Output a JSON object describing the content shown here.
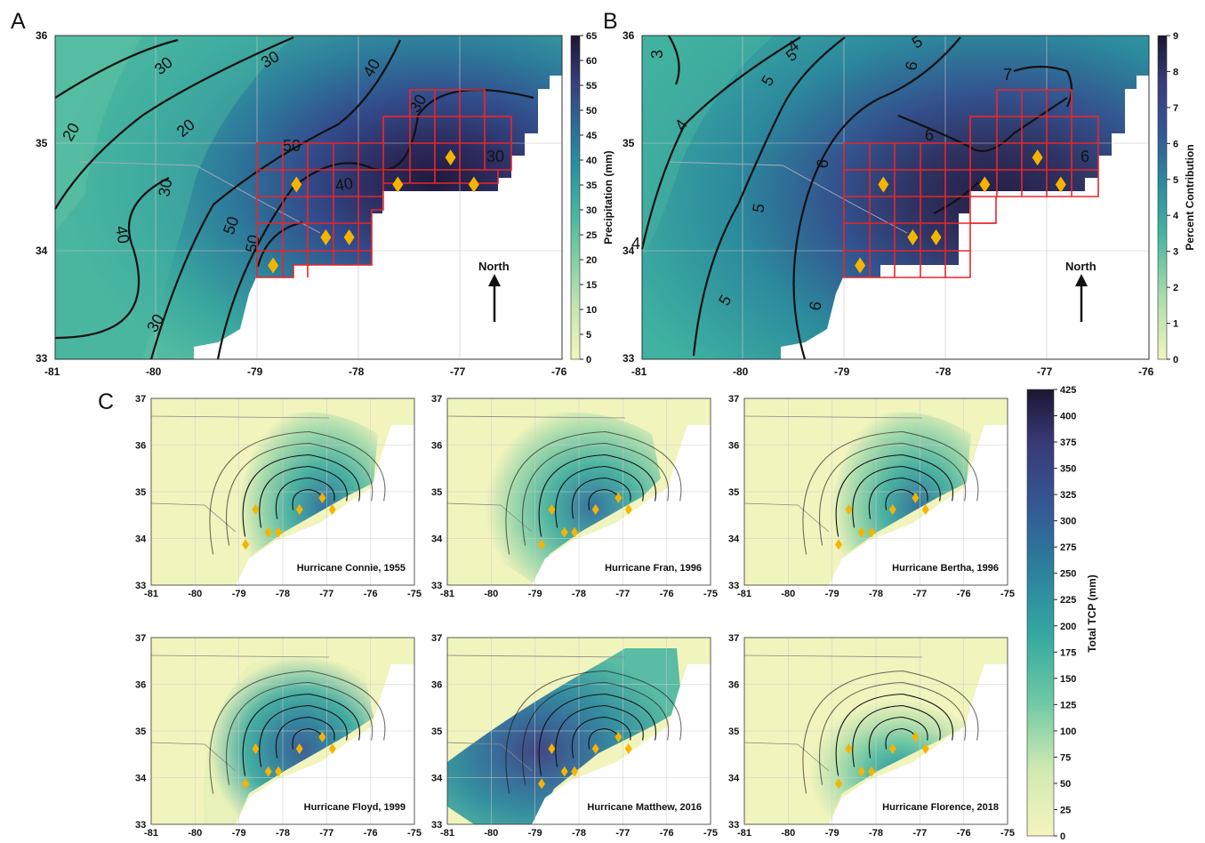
{
  "panels": {
    "A": {
      "label": "A",
      "colorbar_title": "Precipitation (mm)",
      "colorbar_ticks": [
        "0",
        "5",
        "10",
        "15",
        "20",
        "25",
        "30",
        "35",
        "40",
        "45",
        "50",
        "55",
        "60",
        "65"
      ],
      "contour_labels": [
        "20",
        "30",
        "20",
        "30",
        "30",
        "40",
        "40",
        "50",
        "50",
        "30",
        "40",
        "50",
        "30",
        "30"
      ],
      "north_label": "North"
    },
    "B": {
      "label": "B",
      "colorbar_title": "Percent Contribution",
      "colorbar_ticks": [
        "0",
        "1",
        "2",
        "3",
        "4",
        "5",
        "6",
        "7",
        "8",
        "9"
      ],
      "contour_labels": [
        "3",
        "4",
        "5",
        "4",
        "5",
        "5",
        "6",
        "6",
        "7",
        "6",
        "6",
        "5",
        "4",
        "5",
        "6"
      ],
      "north_label": "North"
    },
    "C": {
      "label": "C",
      "colorbar_title": "Total TCP (mm)",
      "colorbar_ticks": [
        "0",
        "25",
        "50",
        "75",
        "100",
        "125",
        "150",
        "175",
        "200",
        "225",
        "250",
        "275",
        "300",
        "325",
        "350",
        "375",
        "400",
        "425"
      ]
    }
  },
  "axes": {
    "top_x_ticks": [
      "-81",
      "-80",
      "-79",
      "-78",
      "-77",
      "-76"
    ],
    "top_y_ticks": [
      "36",
      "35",
      "34",
      "33"
    ],
    "small_x_ticks": [
      "-81",
      "-80",
      "-79",
      "-78",
      "-77",
      "-76",
      "-75"
    ],
    "small_y_ticks": [
      "37",
      "36",
      "35",
      "34",
      "33"
    ]
  },
  "hurricanes": [
    {
      "name": "Hurricane Connie, 1955"
    },
    {
      "name": "Hurricane Fran, 1996"
    },
    {
      "name": "Hurricane Bertha, 1996"
    },
    {
      "name": "Hurricane Floyd, 1999"
    },
    {
      "name": "Hurricane Matthew, 2016"
    },
    {
      "name": "Hurricane Florence, 2018"
    }
  ],
  "stations_lonlat": [
    [
      -78.85,
      33.87
    ],
    [
      -78.62,
      34.62
    ],
    [
      -78.33,
      34.13
    ],
    [
      -78.1,
      34.13
    ],
    [
      -77.62,
      34.62
    ],
    [
      -77.1,
      34.87
    ],
    [
      -76.87,
      34.62
    ]
  ],
  "colors": {
    "marker": "#f5b400",
    "grid_box": "#e8262b",
    "contour": "#111111",
    "ramp": [
      "#f4f5bd",
      "#d5ebb4",
      "#a6dcaa",
      "#72c9a4",
      "#42b3a0",
      "#2a98a0",
      "#2c7a9c",
      "#335b92",
      "#393f80",
      "#2f2a5a",
      "#1c1630"
    ]
  }
}
